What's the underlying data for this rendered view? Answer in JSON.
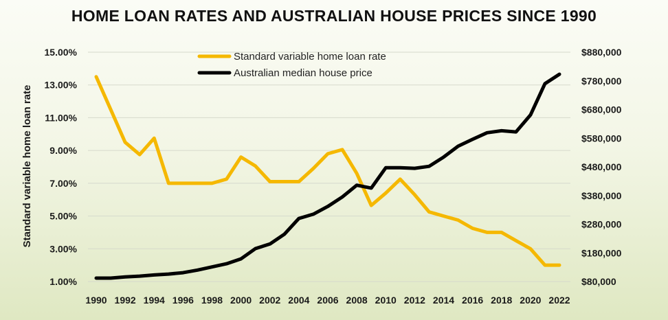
{
  "chart_data": {
    "type": "line",
    "title": "HOME LOAN RATES AND AUSTRALIAN HOUSE PRICES SINCE 1990",
    "ylabel": "Standard variable home loan rate",
    "xlabel": "",
    "x": [
      1990,
      1991,
      1992,
      1993,
      1994,
      1995,
      1996,
      1997,
      1998,
      1999,
      2000,
      2001,
      2002,
      2003,
      2004,
      2005,
      2006,
      2007,
      2008,
      2009,
      2010,
      2011,
      2012,
      2013,
      2014,
      2015,
      2016,
      2017,
      2018,
      2019,
      2020,
      2021,
      2022
    ],
    "x_tick_labels": [
      "1990",
      "1992",
      "1994",
      "1996",
      "1998",
      "2000",
      "2002",
      "2004",
      "2006",
      "2008",
      "2010",
      "2012",
      "2014",
      "2016",
      "2018",
      "2020",
      "2022"
    ],
    "y_left_ticks": [
      "15.00%",
      "13.00%",
      "11.00%",
      "9.00%",
      "7.00%",
      "5.00%",
      "3.00%",
      "1.00%"
    ],
    "y_left_range": [
      1,
      15
    ],
    "y_right_ticks": [
      "$880,000",
      "$780,000",
      "$680,000",
      "$580,000",
      "$480,000",
      "$380,000",
      "$280,000",
      "$180,000",
      "$80,000"
    ],
    "y_right_range": [
      80000,
      880000
    ],
    "grid": "horizontal",
    "legend_position": "top-center",
    "series": [
      {
        "name": "Standard variable home loan rate",
        "axis": "left",
        "color": "#f5b800",
        "values": [
          13.5,
          11.5,
          9.5,
          8.75,
          9.75,
          7.0,
          7.0,
          7.0,
          7.0,
          7.25,
          8.6,
          8.05,
          7.1,
          7.1,
          7.1,
          7.9,
          8.8,
          9.05,
          7.6,
          5.65,
          6.4,
          7.25,
          6.3,
          5.25,
          5.0,
          4.75,
          4.25,
          4.0,
          4.0,
          3.5,
          3.0,
          2.0,
          2.0
        ]
      },
      {
        "name": "Australian median house price",
        "axis": "right",
        "color": "#000000",
        "values": [
          92000,
          92000,
          96000,
          99000,
          103000,
          106000,
          111000,
          120000,
          131000,
          142000,
          159000,
          195000,
          211000,
          245000,
          300000,
          315000,
          342000,
          375000,
          416000,
          406000,
          477000,
          477000,
          475000,
          482000,
          514000,
          552000,
          576000,
          599000,
          606000,
          602000,
          661000,
          770000,
          803000
        ]
      }
    ]
  }
}
